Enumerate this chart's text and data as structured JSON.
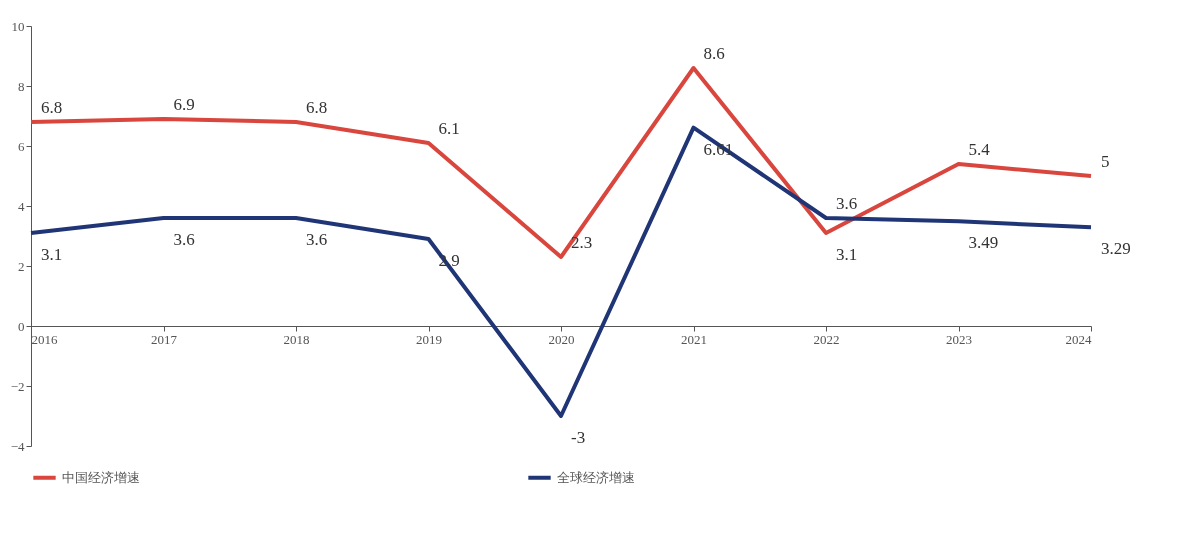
{
  "chart_data": {
    "type": "line",
    "categories": [
      "2016",
      "2017",
      "2018",
      "2019",
      "2020",
      "2021",
      "2022",
      "2023",
      "2024"
    ],
    "series": [
      {
        "name": "中国经济增速",
        "color": "#d9463e",
        "values": [
          6.8,
          6.9,
          6.8,
          6.1,
          2.3,
          8.6,
          3.1,
          5.4,
          5
        ]
      },
      {
        "name": "全球经济增速",
        "color": "#1f3575",
        "values": [
          3.1,
          3.6,
          3.6,
          2.9,
          -3,
          6.61,
          3.6,
          3.49,
          3.29
        ]
      }
    ],
    "ylim": [
      -4,
      10
    ],
    "yticks": [
      -4,
      -2,
      0,
      2,
      4,
      6,
      8,
      10
    ],
    "grid": false,
    "legend": "bottom",
    "data_labels": true,
    "marker": "none",
    "line_style": "solid"
  }
}
